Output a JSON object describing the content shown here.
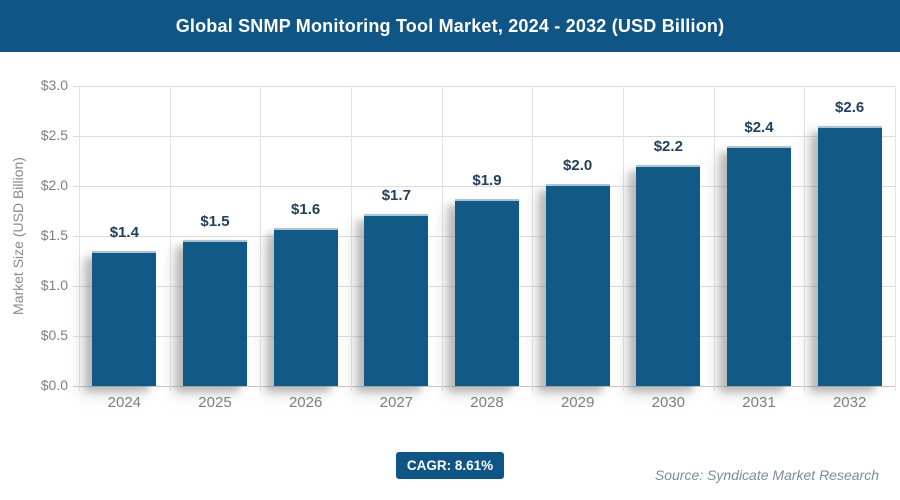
{
  "header": {
    "title": "Global SNMP Monitoring Tool Market, 2024 - 2032 (USD Billion)"
  },
  "footer": {
    "cagr_label": "CAGR: 8.61%",
    "source": "Source: Syndicate Market Research"
  },
  "chart_data": {
    "type": "bar",
    "title": "Global SNMP Monitoring Tool Market, 2024 - 2032 (USD Billion)",
    "categories": [
      "2024",
      "2025",
      "2026",
      "2027",
      "2028",
      "2029",
      "2030",
      "2031",
      "2032"
    ],
    "values": [
      1.4,
      1.5,
      1.6,
      1.7,
      1.9,
      2.0,
      2.2,
      2.4,
      2.6
    ],
    "bar_labels": [
      "$1.4",
      "$1.5",
      "$1.6",
      "$1.7",
      "$1.9",
      "$2.0",
      "$2.2",
      "$2.4",
      "$2.6"
    ],
    "bar_heights_estimated": [
      1.35,
      1.46,
      1.58,
      1.72,
      1.87,
      2.02,
      2.21,
      2.4,
      2.6
    ],
    "xlabel": "",
    "ylabel": "Market Size (USD Billion)",
    "ylim": [
      0,
      3.0
    ],
    "y_tick_step": 0.5,
    "y_ticks": [
      {
        "label": "$3.0",
        "value": 3.0
      },
      {
        "label": "$2.5",
        "value": 2.5
      },
      {
        "label": "$2.0",
        "value": 2.0
      },
      {
        "label": "$1.5",
        "value": 1.5
      },
      {
        "label": "$1.0",
        "value": 1.0
      },
      {
        "label": "$0.5",
        "value": 0.5
      },
      {
        "label": "$0.0",
        "value": 0.0
      }
    ],
    "grid": true,
    "legend": false,
    "cagr": "8.61%"
  },
  "colors": {
    "primary": "#0F5586",
    "bar": "#115A86",
    "bar_top_edge": "#ADC3D3",
    "value_label": "#23405C",
    "axis_text": "#7F7F7F",
    "gridline": "#DCDCDC",
    "vertical_gridline": "#E3E3E3",
    "baseline": "#C6C6C6",
    "source_text": "#7C8C99"
  }
}
